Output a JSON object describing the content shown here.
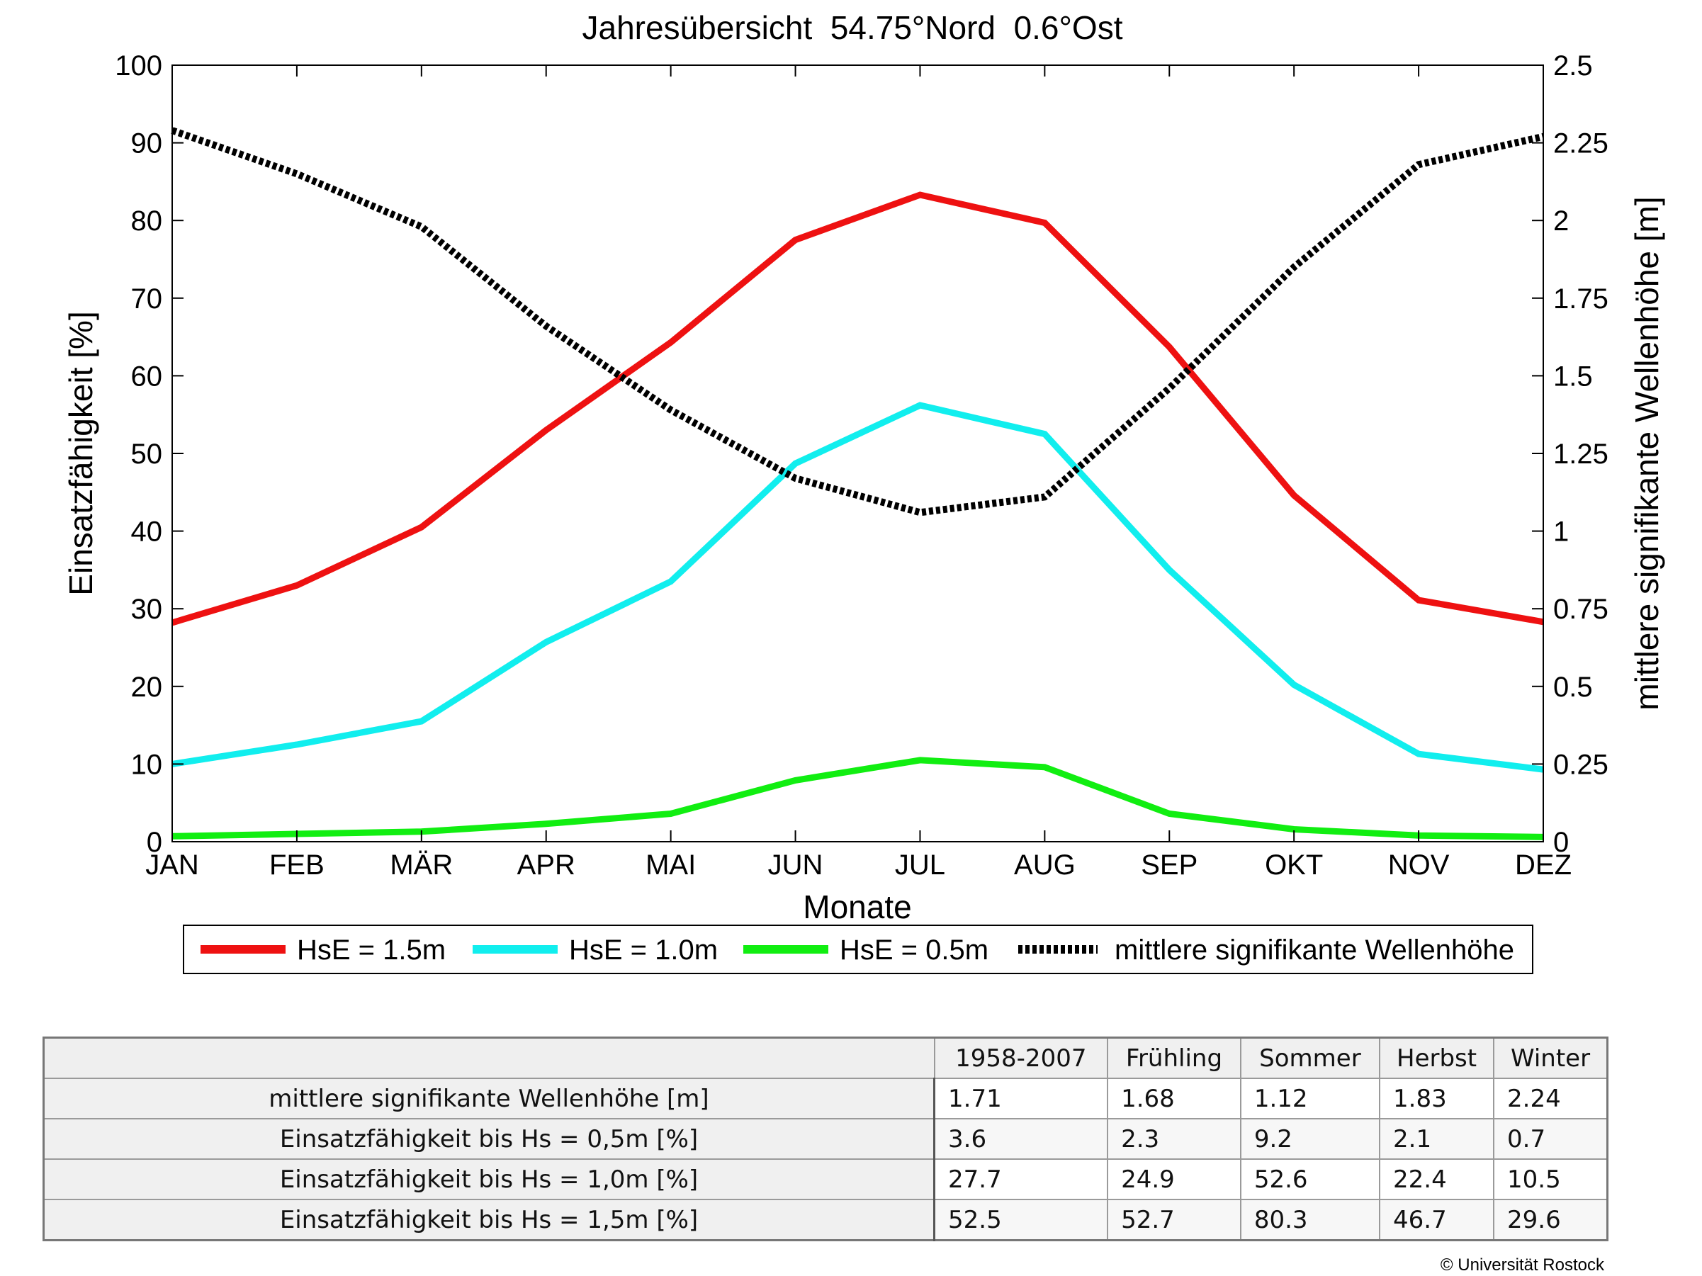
{
  "chart_data": {
    "type": "line",
    "title": "Jahresübersicht  54.75°Nord  0.6°Ost",
    "xlabel": "Monate",
    "ylabel": "Einsatzfähigkeit [%]",
    "y2label": "mittlere signifikante Wellenhöhe [m]",
    "categories": [
      "JAN",
      "FEB",
      "MÄR",
      "APR",
      "MAI",
      "JUN",
      "JUL",
      "AUG",
      "SEP",
      "OKT",
      "NOV",
      "DEZ"
    ],
    "ylim": [
      0,
      100
    ],
    "y2lim": [
      0,
      2.5
    ],
    "yticks": [
      "0",
      "10",
      "20",
      "30",
      "40",
      "50",
      "60",
      "70",
      "80",
      "90",
      "100"
    ],
    "y2ticks": [
      "0",
      "0.25",
      "0.5",
      "0.75",
      "1",
      "1.25",
      "1.5",
      "1.75",
      "2",
      "2.25",
      "2.5"
    ],
    "legend_placement": "below",
    "series": [
      {
        "name": "HsE = 1.5m",
        "axis": "left",
        "color": "#ee1111",
        "style": "solid",
        "values": [
          28.2,
          33.0,
          40.5,
          53.0,
          64.3,
          77.5,
          83.3,
          79.7,
          63.7,
          44.6,
          31.1,
          28.3
        ]
      },
      {
        "name": "HsE = 1.0m",
        "axis": "left",
        "color": "#11eeee",
        "style": "solid",
        "values": [
          10.0,
          12.5,
          15.5,
          25.7,
          33.5,
          48.7,
          56.2,
          52.5,
          35.0,
          20.2,
          11.3,
          9.3
        ]
      },
      {
        "name": "HsE = 0.5m",
        "axis": "left",
        "color": "#11ee11",
        "style": "solid",
        "values": [
          0.7,
          1.0,
          1.3,
          2.3,
          3.6,
          7.9,
          10.5,
          9.6,
          3.6,
          1.6,
          0.8,
          0.6
        ]
      },
      {
        "name": "mittlere signifikante Wellenhöhe",
        "axis": "right",
        "color": "#000000",
        "style": "dotted",
        "values": [
          2.29,
          2.15,
          1.98,
          1.66,
          1.39,
          1.17,
          1.06,
          1.11,
          1.46,
          1.85,
          2.18,
          2.27
        ]
      }
    ]
  },
  "table": {
    "headers": [
      "1958-2007",
      "Frühling",
      "Sommer",
      "Herbst",
      "Winter"
    ],
    "rows": [
      {
        "label": "mittlere signifikante Wellenhöhe [m]",
        "values": [
          "1.71",
          "1.68",
          "1.12",
          "1.83",
          "2.24"
        ]
      },
      {
        "label": "Einsatzfähigkeit bis Hs = 0,5m [%]",
        "values": [
          "3.6",
          "2.3",
          "9.2",
          "2.1",
          "0.7"
        ]
      },
      {
        "label": "Einsatzfähigkeit bis Hs = 1,0m [%]",
        "values": [
          "27.7",
          "24.9",
          "52.6",
          "22.4",
          "10.5"
        ]
      },
      {
        "label": "Einsatzfähigkeit bis Hs = 1,5m [%]",
        "values": [
          "52.5",
          "52.7",
          "80.3",
          "46.7",
          "29.6"
        ]
      }
    ]
  },
  "copyright": "© Universität Rostock"
}
